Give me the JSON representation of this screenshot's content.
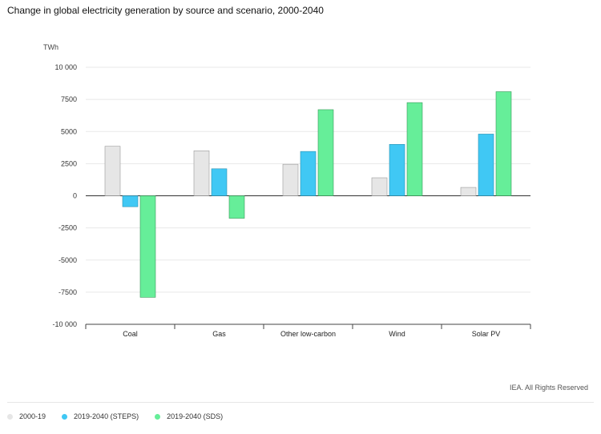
{
  "title": "Change in global electricity generation by source and scenario, 2000-2040",
  "credit": "IEA. All Rights Reserved",
  "colors": {
    "series": [
      "#e6e6e6",
      "#40c8f4",
      "#66ee99"
    ],
    "stroke": [
      "#999999",
      "#2a90b0",
      "#3a9a5a"
    ]
  },
  "chart_data": {
    "type": "bar",
    "title": "Change in global electricity generation by source and scenario, 2000-2040",
    "ylabel": "TWh",
    "xlabel": "",
    "ylim": [
      -10000,
      10000
    ],
    "yticks": [
      10000,
      7500,
      5000,
      2500,
      0,
      -2500,
      -5000,
      -7500,
      -10000
    ],
    "ytick_labels": [
      "10 000",
      "7500",
      "5000",
      "2500",
      "0",
      "-2500",
      "-5000",
      "-7500",
      "-10 000"
    ],
    "grid": true,
    "legend_position": "bottom-left",
    "categories": [
      "Coal",
      "Gas",
      "Other low-carbon",
      "Wind",
      "Solar PV"
    ],
    "series": [
      {
        "name": "2000-19",
        "values": [
          3850,
          3500,
          2450,
          1400,
          650
        ]
      },
      {
        "name": "2019-2040 (STEPS)",
        "values": [
          -850,
          2100,
          3450,
          4000,
          4800
        ]
      },
      {
        "name": "2019-2040 (SDS)",
        "values": [
          -7900,
          -1750,
          6700,
          7250,
          8100
        ]
      }
    ]
  }
}
